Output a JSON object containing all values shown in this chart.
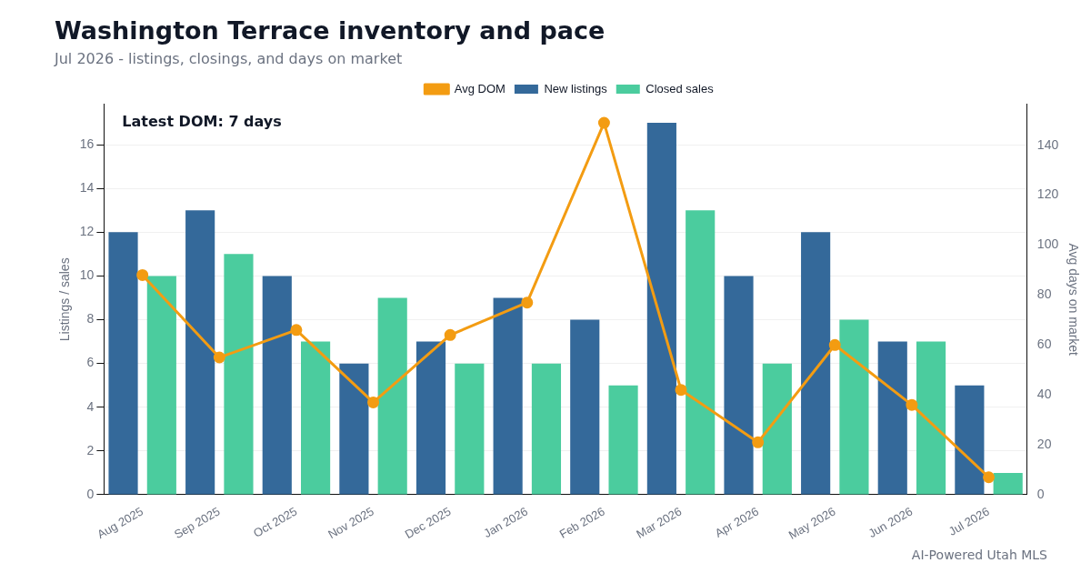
{
  "chart_data": {
    "type": "bar",
    "title": "Washington Terrace inventory and pace",
    "subtitle": "Jul 2026 - listings, closings, and days on market",
    "ylabel": "Listings / sales",
    "y2label": "Avg days on market",
    "categories": [
      "Aug 2025",
      "Sep 2025",
      "Oct 2025",
      "Nov 2025",
      "Dec 2025",
      "Jan 2026",
      "Feb 2026",
      "Mar 2026",
      "Apr 2026",
      "May 2026",
      "Jun 2026",
      "Jul 2026"
    ],
    "series": [
      {
        "name": "New listings",
        "color": "#34699a",
        "values": [
          12,
          13,
          10,
          6,
          7,
          9,
          8,
          17,
          10,
          12,
          7,
          5
        ]
      },
      {
        "name": "Closed sales",
        "color": "#4bcc9e",
        "values": [
          10,
          11,
          7,
          9,
          6,
          6,
          5,
          13,
          6,
          8,
          7,
          1
        ]
      },
      {
        "name": "Avg DOM",
        "type": "line",
        "axis": "y2",
        "color": "#f39c12",
        "values": [
          88,
          55,
          66,
          37,
          64,
          77,
          149,
          42,
          21,
          60,
          36,
          7
        ]
      }
    ],
    "ylim": [
      0,
      17.85
    ],
    "yticks": [
      0,
      2,
      4,
      6,
      8,
      10,
      12,
      14,
      16
    ],
    "y2lim": [
      0,
      156.45
    ],
    "y2ticks": [
      0,
      20,
      40,
      60,
      80,
      100,
      120,
      140
    ],
    "grid": "y",
    "legend": "top",
    "marker": "circle",
    "annotations": [
      "Latest DOM: 7 days",
      "AI-Powered Utah MLS"
    ]
  }
}
